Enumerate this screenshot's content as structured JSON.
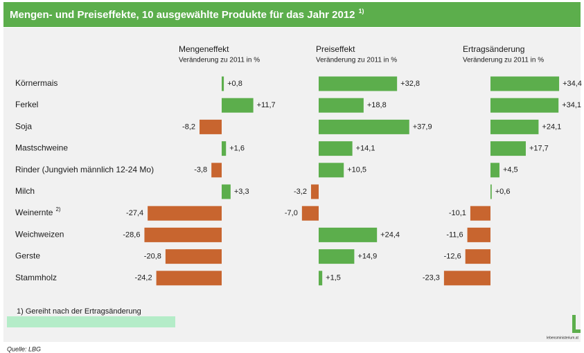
{
  "chart_data": {
    "type": "bar",
    "orientation": "horizontal",
    "title": "Mengen- und Preiseffekte, 10 ausgewählte Produkte für das Jahr 2012",
    "title_note": "1)",
    "categories": [
      "Körnermais",
      "Ferkel",
      "Soja",
      "Mastschweine",
      "Rinder (Jungvieh männlich 12-24 Mo)",
      "Milch",
      "Weinernte",
      "Weichweizen",
      "Gerste",
      "Stammholz"
    ],
    "category_notes": [
      null,
      null,
      null,
      null,
      null,
      null,
      "2)",
      null,
      null,
      null
    ],
    "colors": {
      "positive": "#5cae4c",
      "negative": "#c8652f"
    },
    "series": [
      {
        "name": "Mengeneffekt",
        "subtitle": "Veränderung zu 2011 in %",
        "xlim": [
          -30,
          30
        ],
        "values": [
          0.8,
          11.7,
          -8.2,
          1.6,
          -3.8,
          3.3,
          -27.4,
          -28.6,
          -20.8,
          -24.2
        ],
        "value_labels": [
          "+0,8",
          "+11,7",
          "-8,2",
          "+1,6",
          "-3,8",
          "+3,3",
          "-27,4",
          "-28,6",
          "-20,8",
          "-24,2"
        ]
      },
      {
        "name": "Preiseffekt",
        "subtitle": "Veränderung zu 2011 in %",
        "xlim": [
          -10,
          40
        ],
        "values": [
          32.8,
          18.8,
          37.9,
          14.1,
          10.5,
          -3.2,
          -7.0,
          24.4,
          14.9,
          1.5
        ],
        "value_labels": [
          "+32,8",
          "+18,8",
          "+37,9",
          "+14,1",
          "+10,5",
          "-3,2",
          "-7,0",
          "+24,4",
          "+14,9",
          "+1,5"
        ]
      },
      {
        "name": "Ertragsänderung",
        "subtitle": "Veränderung zu 2011 in %",
        "xlim": [
          -25,
          35
        ],
        "values": [
          34.4,
          34.1,
          24.1,
          17.7,
          4.5,
          0.6,
          -10.1,
          -11.6,
          -12.6,
          -23.3
        ],
        "value_labels": [
          "+34,4",
          "+34,1",
          "+24,1",
          "+17,7",
          "+4,5",
          "+0,6",
          "-10,1",
          "-11,6",
          "-12,6",
          "-23,3"
        ]
      }
    ],
    "footnote": "1) Gereiht nach der Ertragsänderung",
    "source": "Quelle: LBG",
    "logo": "lebensministerium.at"
  }
}
